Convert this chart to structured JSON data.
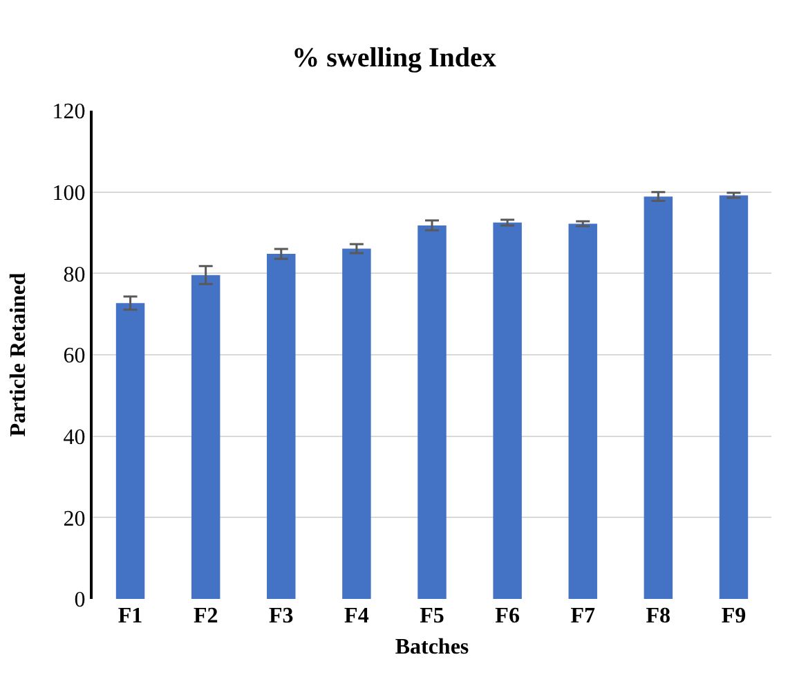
{
  "chart_data": {
    "type": "bar",
    "title": "% swelling Index",
    "xlabel": "Batches",
    "ylabel": "Particle Retained",
    "categories": [
      "F1",
      "F2",
      "F3",
      "F4",
      "F5",
      "F6",
      "F7",
      "F8",
      "F9"
    ],
    "values": [
      72.7,
      79.6,
      84.8,
      86.1,
      91.8,
      92.5,
      92.2,
      98.9,
      99.2
    ],
    "errors": [
      1.6,
      2.2,
      1.2,
      1.1,
      1.2,
      0.7,
      0.6,
      1.1,
      0.6
    ],
    "color": "#4472c4",
    "ylim": [
      0,
      120
    ],
    "yticks": [
      0,
      20,
      40,
      60,
      80,
      100,
      120
    ],
    "grid": "y",
    "legend": false
  }
}
